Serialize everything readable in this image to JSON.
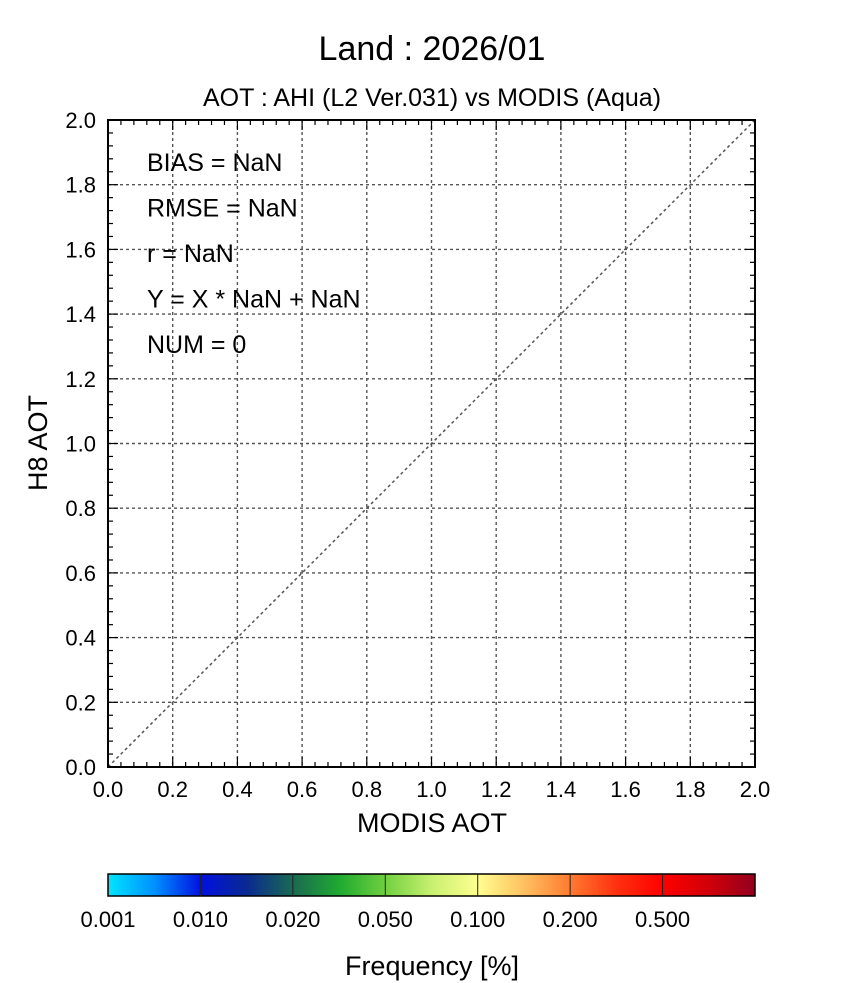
{
  "chart_data": {
    "type": "scatter",
    "title": "Land  :  2026/01",
    "subtitle": "AOT : AHI (L2 Ver.031) vs MODIS (Aqua)",
    "xlabel": "MODIS AOT",
    "ylabel": "H8 AOT",
    "xlim": [
      0.0,
      2.0
    ],
    "ylim": [
      0.0,
      2.0
    ],
    "x_ticks": [
      "0.0",
      "0.2",
      "0.4",
      "0.6",
      "0.8",
      "1.0",
      "1.2",
      "1.4",
      "1.6",
      "1.8",
      "2.0"
    ],
    "y_ticks": [
      "0.0",
      "0.2",
      "0.4",
      "0.6",
      "0.8",
      "1.0",
      "1.2",
      "1.4",
      "1.6",
      "1.8",
      "2.0"
    ],
    "grid": true,
    "reference_line": {
      "style": "dotted",
      "from": [
        0.0,
        0.0
      ],
      "to": [
        2.0,
        2.0
      ]
    },
    "points": [],
    "stats": [
      "BIAS = NaN",
      "RMSE = NaN",
      "r = NaN",
      "Y = X * NaN + NaN",
      "NUM = 0"
    ],
    "colorbar": {
      "label": "Frequency [%]",
      "ticks": [
        "0.001",
        "0.010",
        "0.020",
        "0.050",
        "0.100",
        "0.200",
        "0.500"
      ],
      "segments": [
        [
          "#00e5ff",
          "#0090ff",
          "#0010e0"
        ],
        [
          "#0010e0",
          "#0a2a90",
          "#1a6a50"
        ],
        [
          "#1a6a50",
          "#1faa30",
          "#70d040"
        ],
        [
          "#70d040",
          "#c8f070",
          "#ffff90"
        ],
        [
          "#ffff90",
          "#ffc060",
          "#ff7a30"
        ],
        [
          "#ff7a30",
          "#ff3010",
          "#ff0000"
        ],
        [
          "#ff0000",
          "#d00008",
          "#900020"
        ]
      ]
    }
  }
}
